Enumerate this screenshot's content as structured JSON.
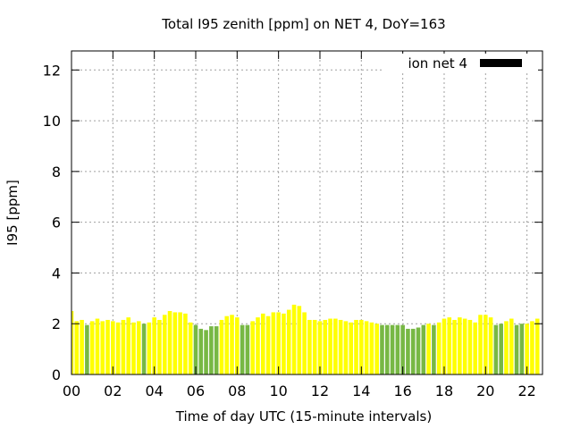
{
  "chart_data": {
    "type": "bar",
    "title": "Total I95 zenith [ppm] on NET 4, DoY=163",
    "xlabel": "Time of day UTC (15-minute intervals)",
    "ylabel": "I95 [ppm]",
    "xlim": [
      0,
      22.75
    ],
    "ylim": [
      0,
      12.75
    ],
    "x_ticks": [
      "00",
      "02",
      "04",
      "06",
      "08",
      "10",
      "12",
      "14",
      "16",
      "18",
      "20",
      "22"
    ],
    "y_ticks": [
      "0",
      "2",
      "4",
      "6",
      "8",
      "10",
      "12"
    ],
    "grid": true,
    "legend": {
      "position": "top-right",
      "label": "ion net 4",
      "color": "#000000"
    },
    "bar_width_hours": 0.25,
    "colors": {
      "yellow": "#ffff00",
      "green": "#77b844",
      "legend": "#000000"
    },
    "bars": [
      {
        "x": 0.0,
        "value": 2.5,
        "color": "yellow"
      },
      {
        "x": 0.25,
        "value": 2.1,
        "color": "yellow"
      },
      {
        "x": 0.5,
        "value": 2.15,
        "color": "yellow"
      },
      {
        "x": 0.75,
        "value": 1.95,
        "color": "green"
      },
      {
        "x": 1.0,
        "value": 2.1,
        "color": "yellow"
      },
      {
        "x": 1.25,
        "value": 2.2,
        "color": "yellow"
      },
      {
        "x": 1.5,
        "value": 2.1,
        "color": "yellow"
      },
      {
        "x": 1.75,
        "value": 2.15,
        "color": "yellow"
      },
      {
        "x": 2.0,
        "value": 2.1,
        "color": "yellow"
      },
      {
        "x": 2.25,
        "value": 2.05,
        "color": "yellow"
      },
      {
        "x": 2.5,
        "value": 2.15,
        "color": "yellow"
      },
      {
        "x": 2.75,
        "value": 2.25,
        "color": "yellow"
      },
      {
        "x": 3.0,
        "value": 2.05,
        "color": "yellow"
      },
      {
        "x": 3.25,
        "value": 2.1,
        "color": "yellow"
      },
      {
        "x": 3.5,
        "value": 2.0,
        "color": "green"
      },
      {
        "x": 3.75,
        "value": 2.05,
        "color": "yellow"
      },
      {
        "x": 4.0,
        "value": 2.25,
        "color": "yellow"
      },
      {
        "x": 4.25,
        "value": 2.15,
        "color": "yellow"
      },
      {
        "x": 4.5,
        "value": 2.35,
        "color": "yellow"
      },
      {
        "x": 4.75,
        "value": 2.5,
        "color": "yellow"
      },
      {
        "x": 5.0,
        "value": 2.45,
        "color": "yellow"
      },
      {
        "x": 5.25,
        "value": 2.45,
        "color": "yellow"
      },
      {
        "x": 5.5,
        "value": 2.4,
        "color": "yellow"
      },
      {
        "x": 5.75,
        "value": 2.05,
        "color": "yellow"
      },
      {
        "x": 6.0,
        "value": 1.95,
        "color": "green"
      },
      {
        "x": 6.25,
        "value": 1.8,
        "color": "green"
      },
      {
        "x": 6.5,
        "value": 1.75,
        "color": "green"
      },
      {
        "x": 6.75,
        "value": 1.9,
        "color": "green"
      },
      {
        "x": 7.0,
        "value": 1.9,
        "color": "green"
      },
      {
        "x": 7.25,
        "value": 2.15,
        "color": "yellow"
      },
      {
        "x": 7.5,
        "value": 2.3,
        "color": "yellow"
      },
      {
        "x": 7.75,
        "value": 2.35,
        "color": "yellow"
      },
      {
        "x": 8.0,
        "value": 2.25,
        "color": "yellow"
      },
      {
        "x": 8.25,
        "value": 1.95,
        "color": "green"
      },
      {
        "x": 8.5,
        "value": 1.95,
        "color": "green"
      },
      {
        "x": 8.75,
        "value": 2.1,
        "color": "yellow"
      },
      {
        "x": 9.0,
        "value": 2.25,
        "color": "yellow"
      },
      {
        "x": 9.25,
        "value": 2.4,
        "color": "yellow"
      },
      {
        "x": 9.5,
        "value": 2.3,
        "color": "yellow"
      },
      {
        "x": 9.75,
        "value": 2.45,
        "color": "yellow"
      },
      {
        "x": 10.0,
        "value": 2.45,
        "color": "yellow"
      },
      {
        "x": 10.25,
        "value": 2.4,
        "color": "yellow"
      },
      {
        "x": 10.5,
        "value": 2.55,
        "color": "yellow"
      },
      {
        "x": 10.75,
        "value": 2.75,
        "color": "yellow"
      },
      {
        "x": 11.0,
        "value": 2.7,
        "color": "yellow"
      },
      {
        "x": 11.25,
        "value": 2.45,
        "color": "yellow"
      },
      {
        "x": 11.5,
        "value": 2.15,
        "color": "yellow"
      },
      {
        "x": 11.75,
        "value": 2.15,
        "color": "yellow"
      },
      {
        "x": 12.0,
        "value": 2.1,
        "color": "yellow"
      },
      {
        "x": 12.25,
        "value": 2.15,
        "color": "yellow"
      },
      {
        "x": 12.5,
        "value": 2.2,
        "color": "yellow"
      },
      {
        "x": 12.75,
        "value": 2.2,
        "color": "yellow"
      },
      {
        "x": 13.0,
        "value": 2.15,
        "color": "yellow"
      },
      {
        "x": 13.25,
        "value": 2.1,
        "color": "yellow"
      },
      {
        "x": 13.5,
        "value": 2.05,
        "color": "yellow"
      },
      {
        "x": 13.75,
        "value": 2.15,
        "color": "yellow"
      },
      {
        "x": 14.0,
        "value": 2.15,
        "color": "yellow"
      },
      {
        "x": 14.25,
        "value": 2.1,
        "color": "yellow"
      },
      {
        "x": 14.5,
        "value": 2.05,
        "color": "yellow"
      },
      {
        "x": 14.75,
        "value": 2.0,
        "color": "yellow"
      },
      {
        "x": 15.0,
        "value": 1.95,
        "color": "green"
      },
      {
        "x": 15.25,
        "value": 1.95,
        "color": "green"
      },
      {
        "x": 15.5,
        "value": 1.95,
        "color": "green"
      },
      {
        "x": 15.75,
        "value": 1.95,
        "color": "green"
      },
      {
        "x": 16.0,
        "value": 1.95,
        "color": "green"
      },
      {
        "x": 16.25,
        "value": 1.8,
        "color": "green"
      },
      {
        "x": 16.5,
        "value": 1.8,
        "color": "green"
      },
      {
        "x": 16.75,
        "value": 1.85,
        "color": "green"
      },
      {
        "x": 17.0,
        "value": 1.95,
        "color": "green"
      },
      {
        "x": 17.25,
        "value": 2.0,
        "color": "yellow"
      },
      {
        "x": 17.5,
        "value": 1.95,
        "color": "green"
      },
      {
        "x": 17.75,
        "value": 2.05,
        "color": "yellow"
      },
      {
        "x": 18.0,
        "value": 2.2,
        "color": "yellow"
      },
      {
        "x": 18.25,
        "value": 2.25,
        "color": "yellow"
      },
      {
        "x": 18.5,
        "value": 2.15,
        "color": "yellow"
      },
      {
        "x": 18.75,
        "value": 2.25,
        "color": "yellow"
      },
      {
        "x": 19.0,
        "value": 2.2,
        "color": "yellow"
      },
      {
        "x": 19.25,
        "value": 2.15,
        "color": "yellow"
      },
      {
        "x": 19.5,
        "value": 2.05,
        "color": "yellow"
      },
      {
        "x": 19.75,
        "value": 2.35,
        "color": "yellow"
      },
      {
        "x": 20.0,
        "value": 2.35,
        "color": "yellow"
      },
      {
        "x": 20.25,
        "value": 2.25,
        "color": "yellow"
      },
      {
        "x": 20.5,
        "value": 1.95,
        "color": "green"
      },
      {
        "x": 20.75,
        "value": 2.0,
        "color": "green"
      },
      {
        "x": 21.0,
        "value": 2.1,
        "color": "yellow"
      },
      {
        "x": 21.25,
        "value": 2.2,
        "color": "yellow"
      },
      {
        "x": 21.5,
        "value": 1.95,
        "color": "green"
      },
      {
        "x": 21.75,
        "value": 2.0,
        "color": "green"
      },
      {
        "x": 22.0,
        "value": 2.0,
        "color": "yellow"
      },
      {
        "x": 22.25,
        "value": 2.1,
        "color": "yellow"
      },
      {
        "x": 22.5,
        "value": 2.2,
        "color": "yellow"
      }
    ]
  }
}
